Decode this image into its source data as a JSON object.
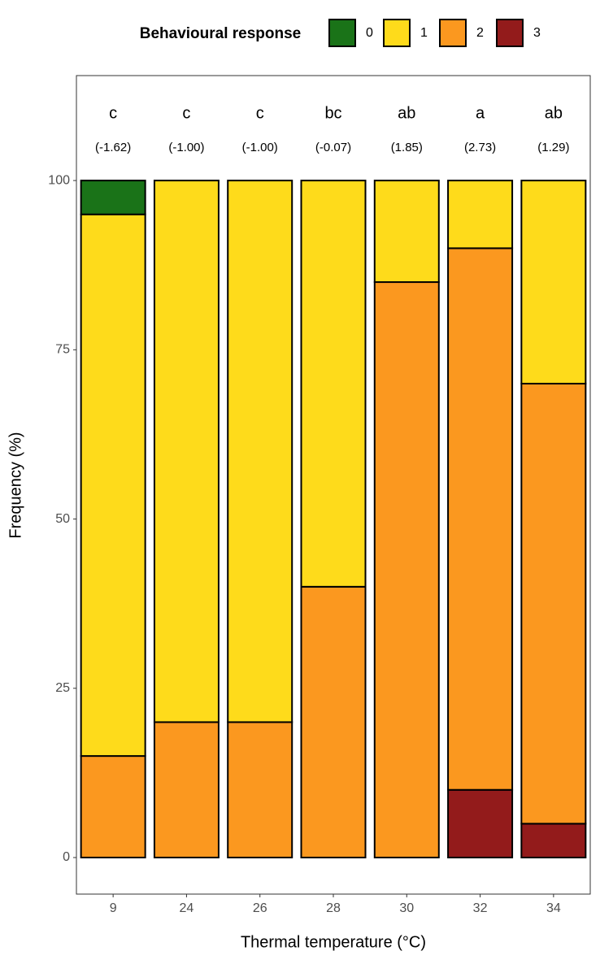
{
  "chart_data": {
    "type": "stacked_bar",
    "legend_title": "Behavioural response",
    "x_label": "Thermal temperature (°C)",
    "y_label": "Frequency (%)",
    "categories": [
      "9",
      "24",
      "26",
      "28",
      "30",
      "32",
      "34"
    ],
    "letters": [
      "c",
      "c",
      "c",
      "bc",
      "ab",
      "a",
      "ab"
    ],
    "scores": [
      "(-1.62)",
      "(-1.00)",
      "(-1.00)",
      "(-0.07)",
      "(1.85)",
      "(2.73)",
      "(1.29)"
    ],
    "series": [
      {
        "name": "0",
        "color": "#1a7318",
        "values": [
          5,
          0,
          0,
          0,
          0,
          0,
          0
        ]
      },
      {
        "name": "1",
        "color": "#fedb1b",
        "values": [
          80,
          80,
          80,
          60,
          15,
          10,
          30
        ]
      },
      {
        "name": "2",
        "color": "#fb981f",
        "values": [
          15,
          20,
          20,
          40,
          85,
          80,
          65
        ]
      },
      {
        "name": "3",
        "color": "#931b1b",
        "values": [
          0,
          0,
          0,
          0,
          0,
          10,
          5
        ]
      }
    ],
    "ylim": [
      -5.4,
      115.5
    ],
    "yticks": [
      0,
      25,
      50,
      75,
      100
    ],
    "legend_position": "top"
  }
}
